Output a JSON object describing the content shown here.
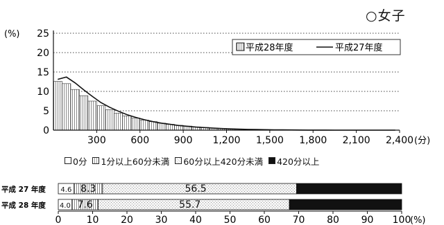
{
  "page_title": "○女子",
  "chart_data": [
    {
      "type": "area",
      "ylabel": "(%)",
      "xlabel": "(分)",
      "ylim": [
        0,
        25
      ],
      "xlim": [
        0,
        2400
      ],
      "yticks": [
        0,
        5,
        10,
        15,
        20,
        25
      ],
      "xticks": [
        300,
        600,
        900,
        1200,
        1500,
        1800,
        2100,
        2400
      ],
      "xtick_labels": [
        "300",
        "600",
        "900",
        "1,200",
        "1,500",
        "1,800",
        "2,100",
        "2,400"
      ],
      "grid": "horizontal-dotted",
      "legend_position": "top-right",
      "bin_width": 60,
      "series": [
        {
          "name": "平成28年度",
          "kind": "histogram",
          "values": [
            12.6,
            12.0,
            10.5,
            8.9,
            7.5,
            6.3,
            5.3,
            4.4,
            3.7,
            3.1,
            2.6,
            2.2,
            1.8,
            1.5,
            1.25,
            1.05,
            0.85,
            0.7,
            0.55,
            0.45,
            0.35,
            0.28,
            0.22,
            0.17,
            0.13,
            0.1,
            0.07,
            0.05,
            0.03,
            0.02,
            0.01,
            0,
            0,
            0,
            0,
            0,
            0,
            0,
            0,
            0
          ]
        },
        {
          "name": "平成27年度",
          "kind": "line",
          "x": [
            30,
            90,
            150,
            210,
            270,
            330,
            390,
            450,
            510,
            570,
            630,
            690,
            750,
            810,
            870,
            930,
            990,
            1050,
            1110,
            1170,
            1230,
            1290,
            1350,
            1410,
            1470,
            1530,
            1590,
            1650,
            1710,
            1770,
            1830,
            1890,
            1950,
            2010,
            2070,
            2130,
            2190,
            2250,
            2310,
            2370
          ],
          "values": [
            13.1,
            13.7,
            12.2,
            10.4,
            8.7,
            7.1,
            5.9,
            4.9,
            4.0,
            3.3,
            2.7,
            2.2,
            1.8,
            1.5,
            1.2,
            1.0,
            0.8,
            0.65,
            0.52,
            0.42,
            0.33,
            0.26,
            0.2,
            0.16,
            0.12,
            0.09,
            0.07,
            0.05,
            0.03,
            0.02,
            0.01,
            0.01,
            0,
            0,
            0,
            0,
            0,
            0,
            0,
            0
          ]
        }
      ]
    },
    {
      "type": "bar",
      "orientation": "horizontal",
      "stacked": true,
      "percent": true,
      "categories": [
        "平成 27 年度",
        "平成 28 年度"
      ],
      "xlim": [
        0,
        100
      ],
      "xticks": [
        0,
        10,
        20,
        30,
        40,
        50,
        60,
        70,
        80,
        90,
        100
      ],
      "xlabel": "(%)",
      "legend_position": "top",
      "series": [
        {
          "name": "0分",
          "values": [
            4.6,
            4.0
          ],
          "labels": [
            "4.6",
            "4.0"
          ]
        },
        {
          "name": "1分以上60分未満",
          "values": [
            8.3,
            7.6
          ],
          "labels": [
            "8.3",
            "7.6"
          ]
        },
        {
          "name": "60分以上420分未満",
          "values": [
            56.5,
            55.7
          ],
          "labels": [
            "56.5",
            "55.7"
          ]
        },
        {
          "name": "420分以上",
          "values": [
            30.6,
            32.7
          ],
          "labels": [
            "",
            ""
          ]
        }
      ]
    }
  ]
}
